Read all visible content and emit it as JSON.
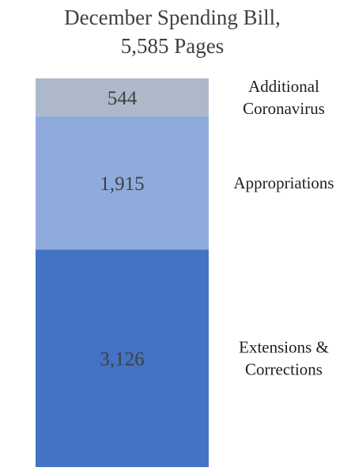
{
  "chart_data": {
    "type": "bar",
    "stacked": true,
    "title": [
      "December Spending Bill,",
      "5,585 Pages"
    ],
    "total": 5585,
    "ylim": [
      0,
      5585
    ],
    "grid": false,
    "segments": [
      {
        "value": 3126,
        "value_label": "3,126",
        "label_lines": [
          "Extensions &",
          "Corrections"
        ],
        "color": "#4472c4"
      },
      {
        "value": 1915,
        "value_label": "1,915",
        "label_lines": [
          "Appropriations"
        ],
        "color": "#8faadc"
      },
      {
        "value": 544,
        "value_label": "544",
        "label_lines": [
          "Additional",
          "Coronavirus"
        ],
        "color": "#adb9ca"
      }
    ]
  }
}
